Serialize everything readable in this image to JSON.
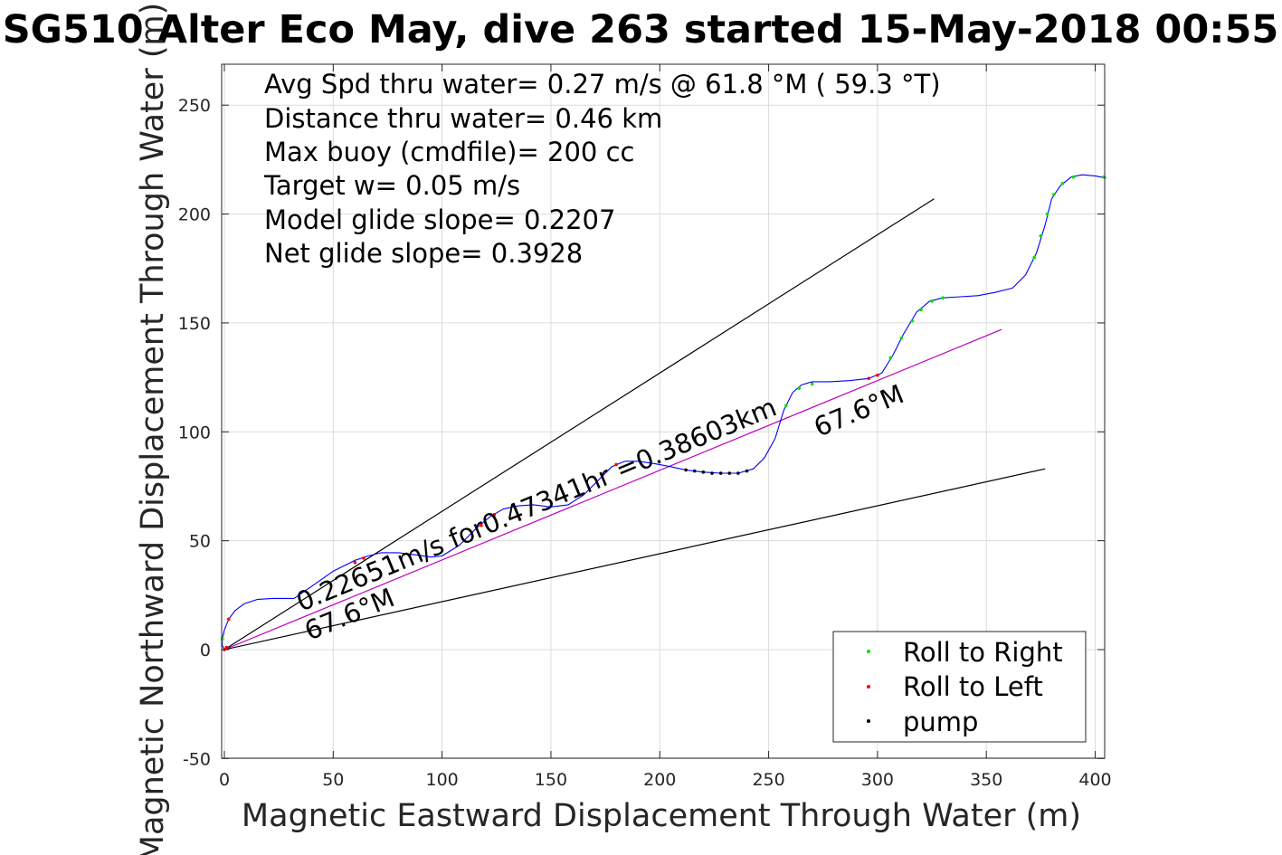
{
  "chart_data": {
    "type": "line",
    "title": "SG510 Alter Eco May, dive 263 started 15-May-2018 00:55",
    "xlabel": "Magnetic Eastward Displacement Through Water (m)",
    "ylabel": "Magnetic Northward Displacement Through Water (m)",
    "xlim": [
      0,
      405
    ],
    "ylim": [
      -50,
      268
    ],
    "xticks": [
      0,
      50,
      100,
      150,
      200,
      250,
      300,
      350,
      400
    ],
    "yticks": [
      -50,
      0,
      50,
      100,
      150,
      200,
      250
    ],
    "grid": true,
    "stats": [
      "Avg Spd thru water=  0.27 m/s @  61.8 °M ( 59.3 °T)",
      "Distance thru water=  0.46 km",
      "Max buoy (cmdfile)= 200 cc",
      "Target w= 0.05 m/s",
      "Model glide slope= 0.2207",
      "Net glide slope= 0.3928"
    ],
    "annotations": {
      "speed_text": "0.22651m/s for0.47341hr =0.38603km",
      "heading_upper": "67.6°M",
      "heading_lower": "67.6°M"
    },
    "track": {
      "name": "",
      "color": "#0000ff",
      "points": [
        [
          0,
          0
        ],
        [
          -1,
          2
        ],
        [
          -1,
          5
        ],
        [
          0,
          9
        ],
        [
          2,
          14
        ],
        [
          5,
          18
        ],
        [
          9,
          21
        ],
        [
          15,
          23
        ],
        [
          22,
          23.5
        ],
        [
          28,
          23.5
        ],
        [
          32,
          23.5
        ],
        [
          40,
          29
        ],
        [
          50,
          36
        ],
        [
          60,
          41
        ],
        [
          66,
          43
        ],
        [
          72,
          44.5
        ],
        [
          80,
          44.5
        ],
        [
          88,
          43.5
        ],
        [
          95,
          42.5
        ],
        [
          100,
          43
        ],
        [
          108,
          48
        ],
        [
          116,
          56
        ],
        [
          122,
          61
        ],
        [
          128,
          64.5
        ],
        [
          135,
          66
        ],
        [
          142,
          66.5
        ],
        [
          150,
          65.5
        ],
        [
          158,
          66.5
        ],
        [
          165,
          71
        ],
        [
          172,
          78
        ],
        [
          178,
          84
        ],
        [
          184,
          86.5
        ],
        [
          190,
          86.5
        ],
        [
          197,
          85.5
        ],
        [
          205,
          84
        ],
        [
          212,
          82.5
        ],
        [
          220,
          81.5
        ],
        [
          228,
          81
        ],
        [
          236,
          81
        ],
        [
          243,
          83
        ],
        [
          248,
          88
        ],
        [
          253,
          97
        ],
        [
          257,
          110
        ],
        [
          261,
          118
        ],
        [
          265,
          121.5
        ],
        [
          270,
          123
        ],
        [
          278,
          123
        ],
        [
          287,
          123.5
        ],
        [
          296,
          124.5
        ],
        [
          302,
          127
        ],
        [
          307,
          135
        ],
        [
          312,
          145
        ],
        [
          318,
          155
        ],
        [
          324,
          160
        ],
        [
          330,
          161.5
        ],
        [
          338,
          162
        ],
        [
          346,
          162.5
        ],
        [
          354,
          164
        ],
        [
          362,
          166
        ],
        [
          368,
          172
        ],
        [
          373,
          182
        ],
        [
          377,
          195
        ],
        [
          380,
          207
        ],
        [
          384,
          213
        ],
        [
          389,
          217
        ],
        [
          394,
          218
        ],
        [
          400,
          217.5
        ],
        [
          405,
          216.5
        ]
      ]
    },
    "reference_lines": [
      {
        "name": "",
        "color": "#000000",
        "x": [
          0,
          326
        ],
        "y": [
          0,
          207
        ]
      },
      {
        "name": "",
        "color": "#000000",
        "x": [
          0,
          377
        ],
        "y": [
          0,
          83
        ]
      },
      {
        "name": "",
        "color": "#c000c0",
        "x": [
          0,
          357
        ],
        "y": [
          0,
          147
        ]
      }
    ],
    "markers": [
      {
        "series": "Roll to Right",
        "color": "#00e000",
        "points": [
          [
            -1,
            5
          ],
          [
            258,
            112
          ],
          [
            264,
            120
          ],
          [
            270,
            122
          ],
          [
            306,
            134
          ],
          [
            311,
            143
          ],
          [
            316,
            151
          ],
          [
            320,
            156
          ],
          [
            325,
            160
          ],
          [
            330,
            161.5
          ],
          [
            372,
            180
          ],
          [
            375,
            190
          ],
          [
            378,
            200
          ],
          [
            381,
            209
          ],
          [
            385,
            214
          ],
          [
            390,
            217
          ],
          [
            404,
            217
          ]
        ]
      },
      {
        "series": "Roll to Left",
        "color": "#ff0000",
        "points": [
          [
            0,
            0
          ],
          [
            1,
            1
          ],
          [
            2,
            14
          ],
          [
            60,
            40
          ],
          [
            64,
            42
          ],
          [
            118,
            57
          ],
          [
            124,
            62
          ],
          [
            180,
            85
          ],
          [
            296,
            124.5
          ],
          [
            300,
            126
          ]
        ]
      },
      {
        "series": "pump",
        "color": "#000000",
        "points": [
          [
            212,
            82.5
          ],
          [
            216,
            82
          ],
          [
            220,
            81.5
          ],
          [
            224,
            81
          ],
          [
            228,
            81
          ],
          [
            232,
            81
          ],
          [
            236,
            81
          ],
          [
            240,
            82
          ]
        ]
      }
    ],
    "legend": {
      "position": "bottom-right",
      "entries": [
        {
          "label": "Roll to Right",
          "color": "#00e000"
        },
        {
          "label": "Roll to Left",
          "color": "#ff0000"
        },
        {
          "label": "pump",
          "color": "#000000"
        }
      ]
    }
  }
}
